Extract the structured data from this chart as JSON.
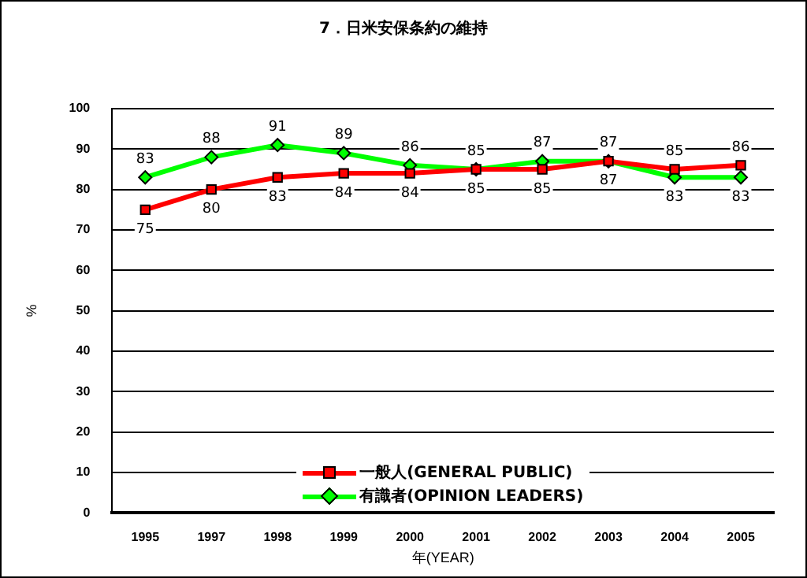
{
  "chart_data": {
    "type": "line",
    "title": "7．日米安保条約の維持",
    "xlabel": "年(YEAR)",
    "ylabel": "%",
    "categories": [
      "1995",
      "1997",
      "1998",
      "1999",
      "2000",
      "2001",
      "2002",
      "2003",
      "2004",
      "2005"
    ],
    "series": [
      {
        "name": "一般人(GENERAL PUBLIC)",
        "color": "#ff0000",
        "marker": "square",
        "values": [
          75,
          80,
          83,
          84,
          84,
          85,
          85,
          87,
          85,
          86
        ]
      },
      {
        "name": "有識者(OPINION LEADERS)",
        "color": "#00ff00",
        "marker": "diamond",
        "values": [
          83,
          88,
          91,
          89,
          86,
          85,
          87,
          87,
          83,
          83
        ]
      }
    ],
    "ylim": [
      0,
      100
    ],
    "yticks": [
      0,
      10,
      20,
      30,
      40,
      50,
      60,
      70,
      80,
      90,
      100
    ],
    "grid": "y",
    "legend": "bottom",
    "data_labels": true
  }
}
